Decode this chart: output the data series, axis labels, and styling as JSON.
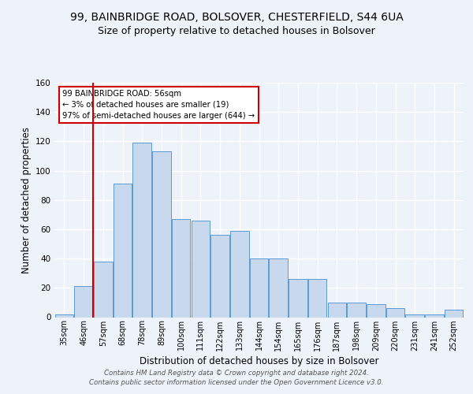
{
  "title_line1": "99, BAINBRIDGE ROAD, BOLSOVER, CHESTERFIELD, S44 6UA",
  "title_line2": "Size of property relative to detached houses in Bolsover",
  "xlabel": "Distribution of detached houses by size in Bolsover",
  "ylabel": "Number of detached properties",
  "bar_labels": [
    "35sqm",
    "46sqm",
    "57sqm",
    "68sqm",
    "78sqm",
    "89sqm",
    "100sqm",
    "111sqm",
    "122sqm",
    "133sqm",
    "144sqm",
    "154sqm",
    "165sqm",
    "176sqm",
    "187sqm",
    "198sqm",
    "209sqm",
    "220sqm",
    "231sqm",
    "241sqm",
    "252sqm"
  ],
  "bar_values": [
    2,
    21,
    38,
    91,
    119,
    113,
    67,
    66,
    56,
    59,
    40,
    40,
    26,
    26,
    10,
    10,
    9,
    6,
    2,
    2,
    5
  ],
  "bar_color": "#c9d9ed",
  "bar_edge_color": "#5b9bd5",
  "vline_color": "#cc0000",
  "annotation_box_text": "99 BAINBRIDGE ROAD: 56sqm\n← 3% of detached houses are smaller (19)\n97% of semi-detached houses are larger (644) →",
  "ylim": [
    0,
    160
  ],
  "yticks": [
    0,
    20,
    40,
    60,
    80,
    100,
    120,
    140,
    160
  ],
  "background_color": "#eef2f9",
  "axes_background": "#eef2f9",
  "grid_color": "#ffffff",
  "title1_fontsize": 10,
  "title2_fontsize": 9,
  "xlabel_fontsize": 8.5,
  "ylabel_fontsize": 8.5,
  "footer_line1": "Contains HM Land Registry data © Crown copyright and database right 2024.",
  "footer_line2": "Contains public sector information licensed under the Open Government Licence v3.0."
}
